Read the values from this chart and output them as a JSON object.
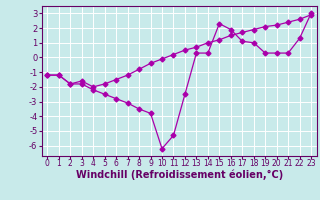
{
  "xlabel": "Windchill (Refroidissement éolien,°C)",
  "ylabel": "",
  "background_color": "#c8eaea",
  "grid_color": "#ffffff",
  "line_color": "#aa00aa",
  "xlim": [
    -0.5,
    23.5
  ],
  "ylim": [
    -6.7,
    3.5
  ],
  "xticks": [
    0,
    1,
    2,
    3,
    4,
    5,
    6,
    7,
    8,
    9,
    10,
    11,
    12,
    13,
    14,
    15,
    16,
    17,
    18,
    19,
    20,
    21,
    22,
    23
  ],
  "yticks": [
    -6,
    -5,
    -4,
    -3,
    -2,
    -1,
    0,
    1,
    2,
    3
  ],
  "line1_x": [
    0,
    1,
    2,
    3,
    4,
    5,
    6,
    7,
    8,
    9,
    10,
    11,
    12,
    13,
    14,
    15,
    16,
    17,
    18,
    19,
    20,
    21,
    22,
    23
  ],
  "line1_y": [
    -1.2,
    -1.2,
    -1.8,
    -1.8,
    -2.2,
    -2.5,
    -2.8,
    -3.1,
    -3.5,
    -3.8,
    -6.2,
    -5.3,
    -2.5,
    0.3,
    0.3,
    2.3,
    1.9,
    1.1,
    1.0,
    0.3,
    0.3,
    0.3,
    1.3,
    3.0
  ],
  "line2_x": [
    0,
    1,
    2,
    3,
    4,
    5,
    6,
    7,
    8,
    9,
    10,
    11,
    12,
    13,
    14,
    15,
    16,
    17,
    18,
    19,
    20,
    21,
    22,
    23
  ],
  "line2_y": [
    -1.2,
    -1.2,
    -1.8,
    -1.6,
    -2.0,
    -1.8,
    -1.5,
    -1.2,
    -0.8,
    -0.4,
    -0.1,
    0.2,
    0.5,
    0.7,
    1.0,
    1.2,
    1.5,
    1.7,
    1.9,
    2.1,
    2.2,
    2.4,
    2.6,
    2.9
  ],
  "tick_fontsize": 5.5,
  "xlabel_fontsize": 7.0,
  "marker": "D",
  "markersize": 2.5,
  "linewidth": 0.9
}
